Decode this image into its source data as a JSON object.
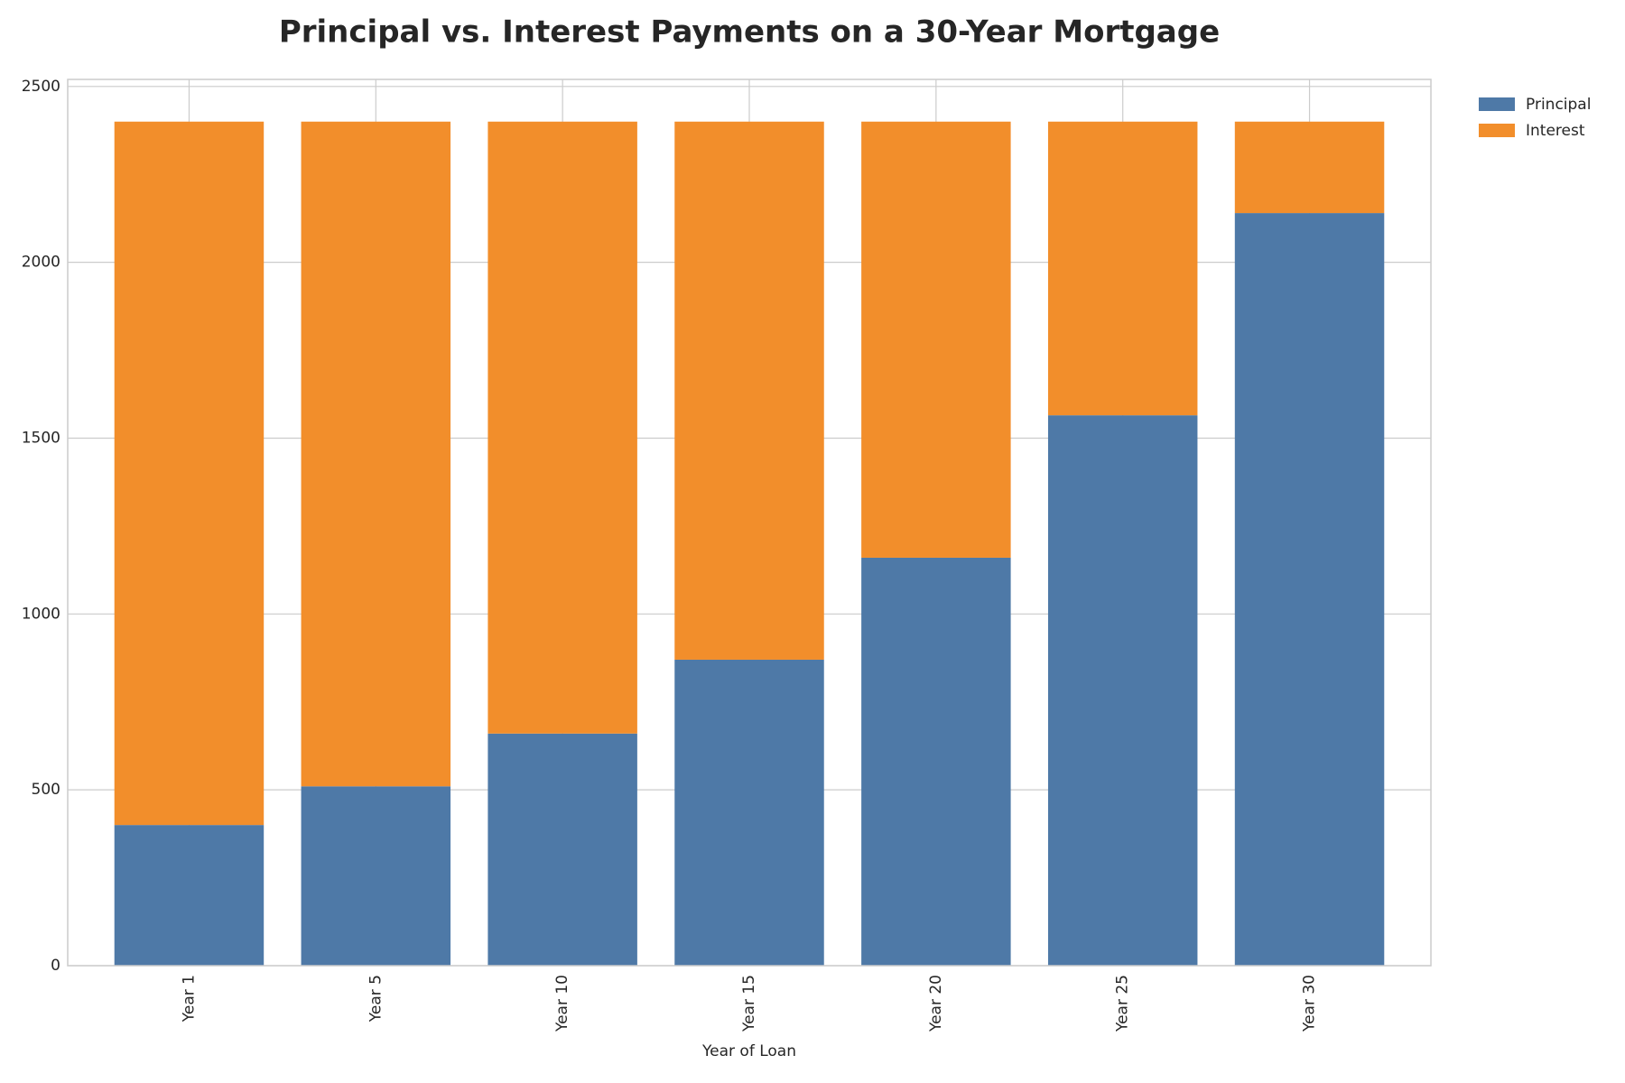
{
  "chart_data": {
    "type": "stacked_bar",
    "title": "Principal vs. Interest Payments on a 30-Year Mortgage",
    "x_label": "Year of Loan",
    "categories": [
      "Year 1",
      "Year 5",
      "Year 10",
      "Year 15",
      "Year 20",
      "Year 25",
      "Year 30"
    ],
    "series": [
      {
        "name": "Principal",
        "color": "#4e79a7",
        "values": [
          400,
          510,
          660,
          870,
          1160,
          1565,
          2140
        ]
      },
      {
        "name": "Interest",
        "color": "#f28e2b",
        "values": [
          2000,
          1890,
          1740,
          1530,
          1240,
          835,
          260
        ]
      }
    ],
    "ylim": [
      0,
      2520
    ],
    "yticks": [
      0,
      500,
      1000,
      1500,
      2000,
      2500
    ],
    "grid": true,
    "legend": "outside-right"
  }
}
